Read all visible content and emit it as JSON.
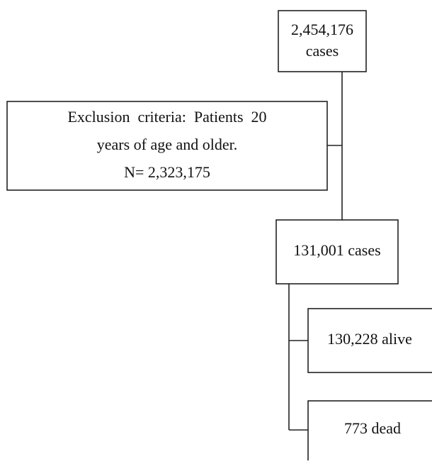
{
  "nodes": [
    {
      "lines": [
        "2,454,176",
        "cases"
      ]
    },
    {
      "lines": [
        "Exclusion  criteria:  Patients  20",
        "years of age and older.",
        "N= 2,323,175"
      ]
    },
    {
      "lines": [
        "131,001 cases"
      ]
    },
    {
      "lines": [
        "130,228 alive"
      ]
    },
    {
      "lines": [
        "773 dead"
      ]
    }
  ]
}
